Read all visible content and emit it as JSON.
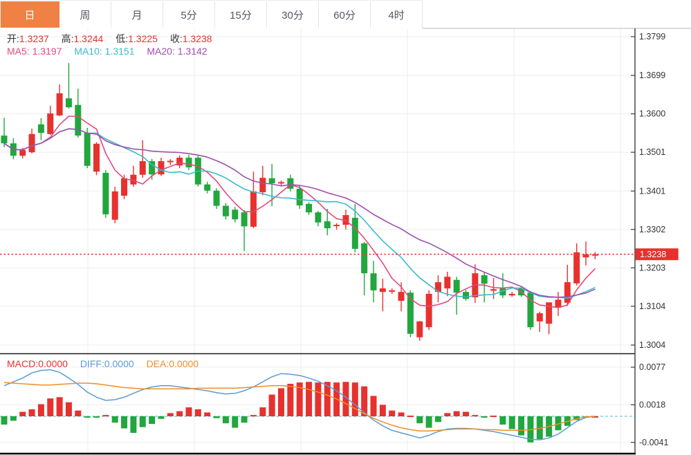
{
  "tabs": {
    "items": [
      {
        "label": "日",
        "active": true
      },
      {
        "label": "周",
        "active": false
      },
      {
        "label": "月",
        "active": false
      },
      {
        "label": "5分",
        "active": false
      },
      {
        "label": "15分",
        "active": false
      },
      {
        "label": "30分",
        "active": false
      },
      {
        "label": "60分",
        "active": false
      },
      {
        "label": "4时",
        "active": false
      }
    ]
  },
  "legend": {
    "open_label": "开:",
    "open": "1.3237",
    "high_label": "高:",
    "high": "1.3244",
    "low_label": "低:",
    "low": "1.3225",
    "close_label": "收:",
    "close": "1.3238",
    "ma5_label": "MA5:",
    "ma5": "1.3197",
    "ma10_label": "MA10:",
    "ma10": "1.3151",
    "ma20_label": "MA20:",
    "ma20": "1.3142"
  },
  "macd_legend": {
    "macd_label": "MACD:",
    "macd": "0.0000",
    "diff_label": "DIFF:",
    "diff": "0.0000",
    "dea_label": "DEA:",
    "dea": "0.0000"
  },
  "colors": {
    "up": "#e7312e",
    "down": "#21a73d",
    "tab_active": "#ef8144",
    "ma5": "#e2497d",
    "ma10": "#3ab9cd",
    "ma20": "#9e4fad",
    "diff_line": "#5a9bd8",
    "dea_line": "#f08c2c",
    "zero_dash": "#85d2e3",
    "last_price_line": "#f03b30",
    "grid": "#ededed",
    "axis": "#3a3a3a",
    "tick_text": "#333333"
  },
  "chart_data": {
    "type": "candlestick+macd",
    "legend_position": "top-left",
    "grid": true,
    "price_axis": {
      "ticks": [
        1.3799,
        1.3699,
        1.36,
        1.3501,
        1.3401,
        1.3302,
        1.3203,
        1.3104,
        1.3004
      ],
      "last_price": 1.3238,
      "range": [
        1.2995,
        1.382
      ]
    },
    "macd_axis": {
      "ticks": [
        0.0077,
        0.0018,
        -0.0041
      ],
      "zero": 0.0
    },
    "ma_periods": [
      5,
      10,
      20
    ],
    "candles_ohlc": [
      [
        1.3544,
        1.359,
        1.3514,
        1.3524
      ],
      [
        1.3524,
        1.3537,
        1.3483,
        1.3492
      ],
      [
        1.3492,
        1.3512,
        1.3485,
        1.3507
      ],
      [
        1.3501,
        1.3562,
        1.3498,
        1.3548
      ],
      [
        1.3573,
        1.3589,
        1.3532,
        1.3551
      ],
      [
        1.3548,
        1.3621,
        1.3546,
        1.3601
      ],
      [
        1.3596,
        1.3676,
        1.3594,
        1.3653
      ],
      [
        1.364,
        1.3731,
        1.3614,
        1.3617
      ],
      [
        1.3623,
        1.3665,
        1.3539,
        1.3544
      ],
      [
        1.3551,
        1.3564,
        1.346,
        1.3466
      ],
      [
        1.3451,
        1.3527,
        1.3442,
        1.3523
      ],
      [
        1.3448,
        1.3455,
        1.3332,
        1.3341
      ],
      [
        1.3327,
        1.3412,
        1.3318,
        1.34
      ],
      [
        1.3389,
        1.3443,
        1.338,
        1.3434
      ],
      [
        1.3418,
        1.3466,
        1.3412,
        1.3443
      ],
      [
        1.3443,
        1.3532,
        1.3435,
        1.3478
      ],
      [
        1.3478,
        1.3484,
        1.343,
        1.3444
      ],
      [
        1.3444,
        1.3487,
        1.344,
        1.3478
      ],
      [
        1.3477,
        1.3483,
        1.3468,
        1.3479
      ],
      [
        1.3467,
        1.3493,
        1.346,
        1.3487
      ],
      [
        1.3487,
        1.3494,
        1.3455,
        1.3462
      ],
      [
        1.3487,
        1.3492,
        1.3413,
        1.3418
      ],
      [
        1.3418,
        1.3425,
        1.3395,
        1.3402
      ],
      [
        1.3402,
        1.3408,
        1.3355,
        1.3363
      ],
      [
        1.3363,
        1.337,
        1.3328,
        1.3336
      ],
      [
        1.3353,
        1.336,
        1.332,
        1.3328
      ],
      [
        1.3346,
        1.3352,
        1.3246,
        1.331
      ],
      [
        1.3309,
        1.3451,
        1.3305,
        1.34
      ],
      [
        1.3398,
        1.3466,
        1.339,
        1.3435
      ],
      [
        1.3434,
        1.3471,
        1.3362,
        1.3421
      ],
      [
        1.3421,
        1.3428,
        1.3413,
        1.3424
      ],
      [
        1.3434,
        1.3443,
        1.34,
        1.3407
      ],
      [
        1.3407,
        1.3415,
        1.3355,
        1.3364
      ],
      [
        1.3368,
        1.3372,
        1.334,
        1.3346
      ],
      [
        1.3346,
        1.335,
        1.331,
        1.332
      ],
      [
        1.3323,
        1.3355,
        1.3287,
        1.3305
      ],
      [
        1.3312,
        1.3318,
        1.3302,
        1.3314
      ],
      [
        1.3314,
        1.3353,
        1.3302,
        1.3339
      ],
      [
        1.3332,
        1.3368,
        1.3243,
        1.3252
      ],
      [
        1.3266,
        1.327,
        1.3132,
        1.3189
      ],
      [
        1.3189,
        1.3221,
        1.3114,
        1.3145
      ],
      [
        1.3141,
        1.3175,
        1.3091,
        1.315
      ],
      [
        1.3143,
        1.315,
        1.3136,
        1.3145
      ],
      [
        1.3118,
        1.3166,
        1.3091,
        1.3141
      ],
      [
        1.3139,
        1.3145,
        1.3024,
        1.3033
      ],
      [
        1.3024,
        1.3066,
        1.3015,
        1.3065
      ],
      [
        1.305,
        1.3145,
        1.3043,
        1.3136
      ],
      [
        1.3141,
        1.3184,
        1.3114,
        1.3166
      ],
      [
        1.315,
        1.3193,
        1.313,
        1.318
      ],
      [
        1.3172,
        1.318,
        1.3082,
        1.3139
      ],
      [
        1.3141,
        1.3146,
        1.3118,
        1.3123
      ],
      [
        1.3127,
        1.3212,
        1.3113,
        1.3189
      ],
      [
        1.3184,
        1.3193,
        1.3114,
        1.3162
      ],
      [
        1.3144,
        1.3177,
        1.3123,
        1.3148
      ],
      [
        1.315,
        1.3189,
        1.3125,
        1.3132
      ],
      [
        1.3132,
        1.3141,
        1.3128,
        1.3136
      ],
      [
        1.315,
        1.3155,
        1.3128,
        1.3132
      ],
      [
        1.3139,
        1.3143,
        1.3043,
        1.305
      ],
      [
        1.3065,
        1.309,
        1.3038,
        1.3086
      ],
      [
        1.3059,
        1.3114,
        1.3032,
        1.3114
      ],
      [
        1.31,
        1.3141,
        1.3079,
        1.3121
      ],
      [
        1.3113,
        1.3211,
        1.3105,
        1.3166
      ],
      [
        1.3163,
        1.3266,
        1.3158,
        1.3243
      ],
      [
        1.323,
        1.3271,
        1.3209,
        1.3238
      ],
      [
        1.3237,
        1.3244,
        1.3225,
        1.3238
      ]
    ],
    "macd": {
      "hist": [
        -0.0013,
        -0.0007,
        0.0007,
        0.0011,
        0.0019,
        0.0028,
        0.003,
        0.0022,
        0.0009,
        -0.0002,
        -0.0001,
        0.0002,
        -0.001,
        -0.0019,
        -0.0026,
        -0.0017,
        -0.0012,
        -0.0004,
        0.0005,
        0.0008,
        0.0014,
        0.0011,
        0.0006,
        -0.0003,
        -0.0011,
        -0.0018,
        -0.001,
        0.0002,
        0.0014,
        0.0034,
        0.0044,
        0.0051,
        0.0053,
        0.0054,
        0.0053,
        0.0054,
        0.0053,
        0.0054,
        0.0053,
        0.0047,
        0.0032,
        0.0018,
        0.0009,
        0.0006,
        0.0001,
        -0.0011,
        -0.0018,
        -0.0009,
        0.0005,
        0.0008,
        0.0007,
        0.0002,
        -0.0001,
        0.0001,
        -0.0013,
        -0.002,
        -0.003,
        -0.0041,
        -0.0036,
        -0.0032,
        -0.0022,
        -0.0015,
        -0.0006,
        -0.0001,
        0.0
      ],
      "diff": [
        0.0048,
        0.0054,
        0.006,
        0.0068,
        0.0072,
        0.0073,
        0.0069,
        0.006,
        0.005,
        0.0038,
        0.003,
        0.0025,
        0.0026,
        0.003,
        0.0036,
        0.0042,
        0.0046,
        0.0048,
        0.0048,
        0.0046,
        0.0044,
        0.0042,
        0.004,
        0.0037,
        0.0035,
        0.0036,
        0.004,
        0.0046,
        0.0054,
        0.0062,
        0.0067,
        0.0066,
        0.0064,
        0.006,
        0.0055,
        0.0048,
        0.004,
        0.003,
        0.0018,
        0.0006,
        -0.0006,
        -0.0015,
        -0.0022,
        -0.0026,
        -0.003,
        -0.0034,
        -0.003,
        -0.0024,
        -0.002,
        -0.0019,
        -0.0019,
        -0.002,
        -0.0022,
        -0.0024,
        -0.0027,
        -0.003,
        -0.0033,
        -0.0036,
        -0.0037,
        -0.0034,
        -0.0028,
        -0.0018,
        -0.0008,
        -0.0002,
        0.0
      ],
      "dea": [
        0.0053,
        0.0052,
        0.0051,
        0.005,
        0.0049,
        0.0049,
        0.005,
        0.0051,
        0.0052,
        0.0052,
        0.0051,
        0.0049,
        0.0047,
        0.0045,
        0.0044,
        0.0043,
        0.0043,
        0.0043,
        0.0043,
        0.0043,
        0.0043,
        0.0044,
        0.0044,
        0.0044,
        0.0044,
        0.0044,
        0.0045,
        0.0046,
        0.0047,
        0.0048,
        0.0048,
        0.0047,
        0.0045,
        0.0042,
        0.0038,
        0.0033,
        0.0027,
        0.002,
        0.0012,
        0.0004,
        -0.0003,
        -0.0009,
        -0.0014,
        -0.0018,
        -0.0021,
        -0.0023,
        -0.0023,
        -0.0022,
        -0.0021,
        -0.002,
        -0.002,
        -0.002,
        -0.0021,
        -0.0021,
        -0.0022,
        -0.0022,
        -0.0022,
        -0.0021,
        -0.0019,
        -0.0016,
        -0.0012,
        -0.0008,
        -0.0004,
        -0.0001,
        0.0
      ]
    }
  }
}
